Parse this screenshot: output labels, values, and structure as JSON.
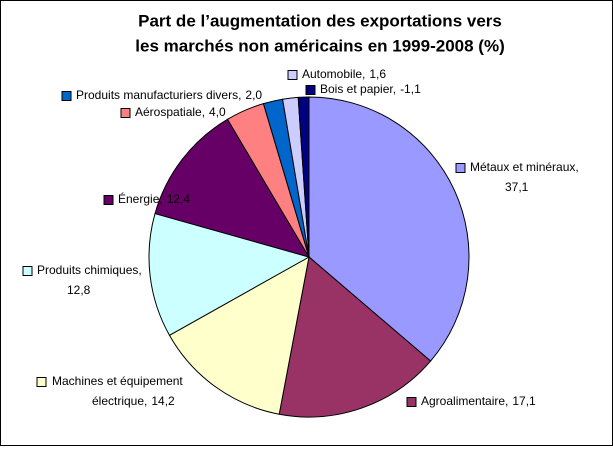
{
  "chart_data": {
    "type": "pie",
    "title": [
      "Part de l’augmentation des exportations vers",
      "les marchés non américains en 1999-2008 (%)"
    ],
    "categories": [
      "Métaux et minéraux,",
      "Agroalimentaire,",
      "Machines et équipement électrique,",
      "Produits chimiques,",
      "Énergie,",
      "Aérospatiale,",
      "Produits manufacturiers divers,",
      "Automobile,",
      "Bois et papier,"
    ],
    "values": [
      37.1,
      17.1,
      14.2,
      12.8,
      12.4,
      4.0,
      2.0,
      1.6,
      -1.1
    ],
    "value_labels": [
      "37,1",
      "17,1",
      "14,2",
      "12,8",
      "12,4",
      "4,0",
      "2,0",
      "1,6",
      "-1,1"
    ],
    "colors": [
      "#9999ff",
      "#993366",
      "#ffffcc",
      "#ccffff",
      "#660066",
      "#ff8080",
      "#0066cc",
      "#ccccff",
      "#000080"
    ]
  }
}
